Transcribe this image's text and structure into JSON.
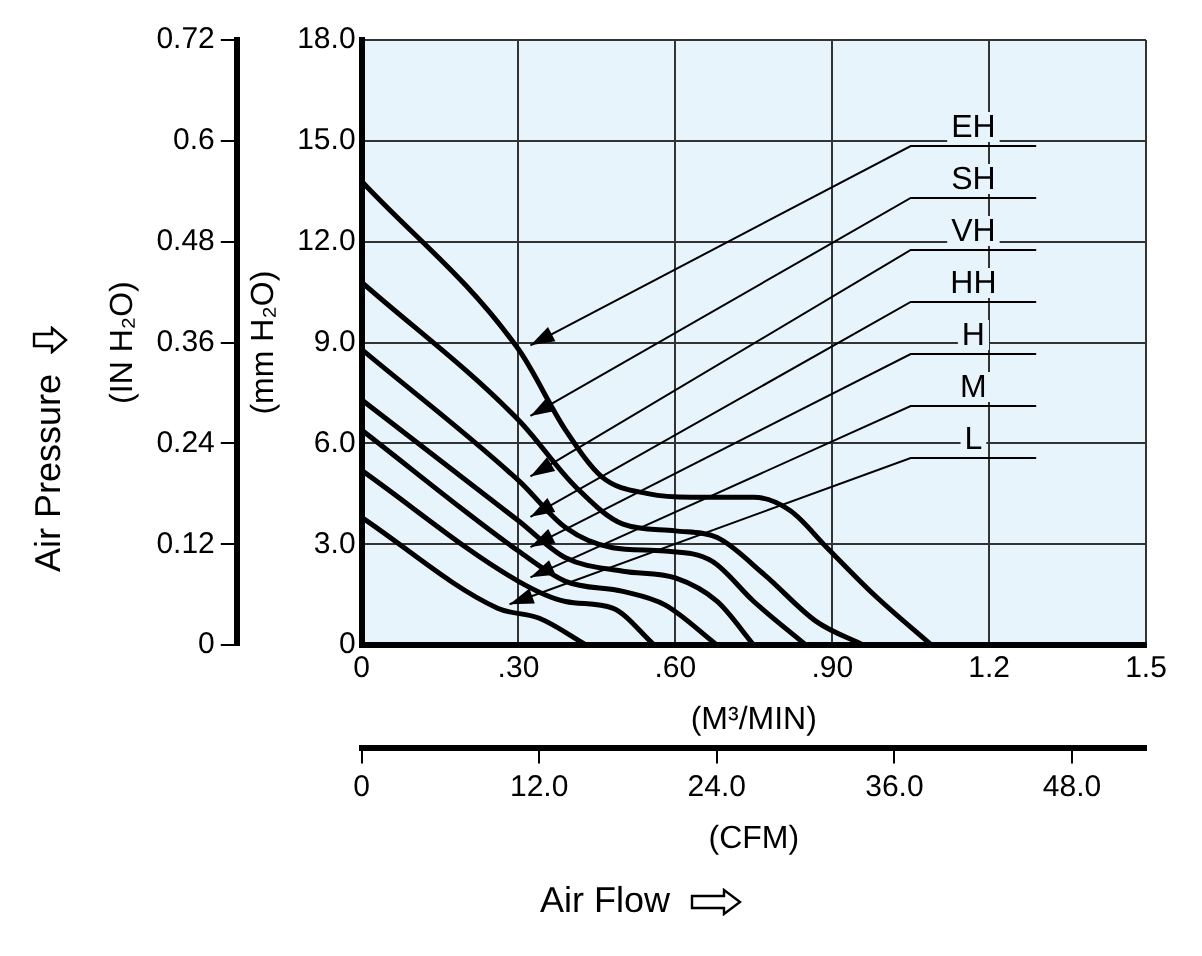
{
  "chart_data": {
    "type": "line",
    "xlabel": "(M³/MIN)",
    "ylabel": "(mm H₂O)",
    "y2label": "(IN H₂O)",
    "x2label": "(CFM)",
    "annotations": [
      "Air Pressure",
      "Air Flow"
    ],
    "xlim": [
      0,
      1.5
    ],
    "xticks": [
      0,
      {
        "value": 0.3,
        "label": ".30"
      },
      {
        "value": 0.6,
        "label": ".60"
      },
      {
        "value": 0.9,
        "label": ".90"
      },
      1.2,
      1.5
    ],
    "x2lim": [
      0,
      53
    ],
    "x2ticks": [
      0,
      {
        "value": 12,
        "label": "12.0"
      },
      {
        "value": 24,
        "label": "24.0"
      },
      {
        "value": 36,
        "label": "36.0"
      },
      {
        "value": 48,
        "label": "48.0"
      }
    ],
    "ylim": [
      0,
      18
    ],
    "yticks": [
      0,
      {
        "value": 3,
        "label": "3.0"
      },
      {
        "value": 6,
        "label": "6.0"
      },
      {
        "value": 9,
        "label": "9.0"
      },
      {
        "value": 12,
        "label": "12.0"
      },
      {
        "value": 15,
        "label": "15.0"
      },
      {
        "value": 18,
        "label": "18.0"
      }
    ],
    "y2lim": [
      0,
      0.72
    ],
    "y2ticks": [
      0,
      0.12,
      0.24,
      0.36,
      0.48,
      0.6,
      0.72
    ],
    "grid": true,
    "legend": false,
    "marker": "none",
    "line_style": "solid",
    "series": [
      {
        "name": "EH",
        "color": "#000000",
        "x": [
          0,
          0.3,
          0.39,
          0.46,
          0.55,
          0.63,
          0.75,
          0.82,
          0.89,
          0.98,
          1.09
        ],
        "values": [
          13.8,
          8.8,
          6.4,
          5.0,
          4.5,
          4.4,
          4.4,
          4.0,
          2.9,
          1.5,
          0
        ]
      },
      {
        "name": "SH",
        "color": "#000000",
        "x": [
          0,
          0.3,
          0.41,
          0.5,
          0.6,
          0.68,
          0.77,
          0.87,
          0.96
        ],
        "values": [
          10.8,
          6.7,
          4.7,
          3.6,
          3.4,
          3.2,
          2.1,
          0.7,
          0
        ]
      },
      {
        "name": "VH",
        "color": "#000000",
        "x": [
          0,
          0.3,
          0.39,
          0.48,
          0.58,
          0.67,
          0.75,
          0.85
        ],
        "values": [
          8.8,
          4.9,
          3.5,
          2.9,
          2.8,
          2.5,
          1.3,
          0
        ]
      },
      {
        "name": "HH",
        "color": "#000000",
        "x": [
          0,
          0.3,
          0.39,
          0.5,
          0.6,
          0.68,
          0.75
        ],
        "values": [
          7.3,
          3.7,
          2.6,
          2.2,
          2.0,
          1.3,
          0
        ]
      },
      {
        "name": "H",
        "color": "#000000",
        "x": [
          0,
          0.3,
          0.39,
          0.5,
          0.58,
          0.68
        ],
        "values": [
          6.4,
          2.8,
          1.9,
          1.6,
          1.2,
          0
        ]
      },
      {
        "name": "M",
        "color": "#000000",
        "x": [
          0,
          0.3,
          0.39,
          0.48,
          0.56
        ],
        "values": [
          5.2,
          1.9,
          1.3,
          1.1,
          0
        ]
      },
      {
        "name": "L",
        "color": "#000000",
        "x": [
          0,
          0.26,
          0.34,
          0.43
        ],
        "values": [
          3.8,
          1.1,
          0.8,
          0
        ]
      }
    ]
  }
}
